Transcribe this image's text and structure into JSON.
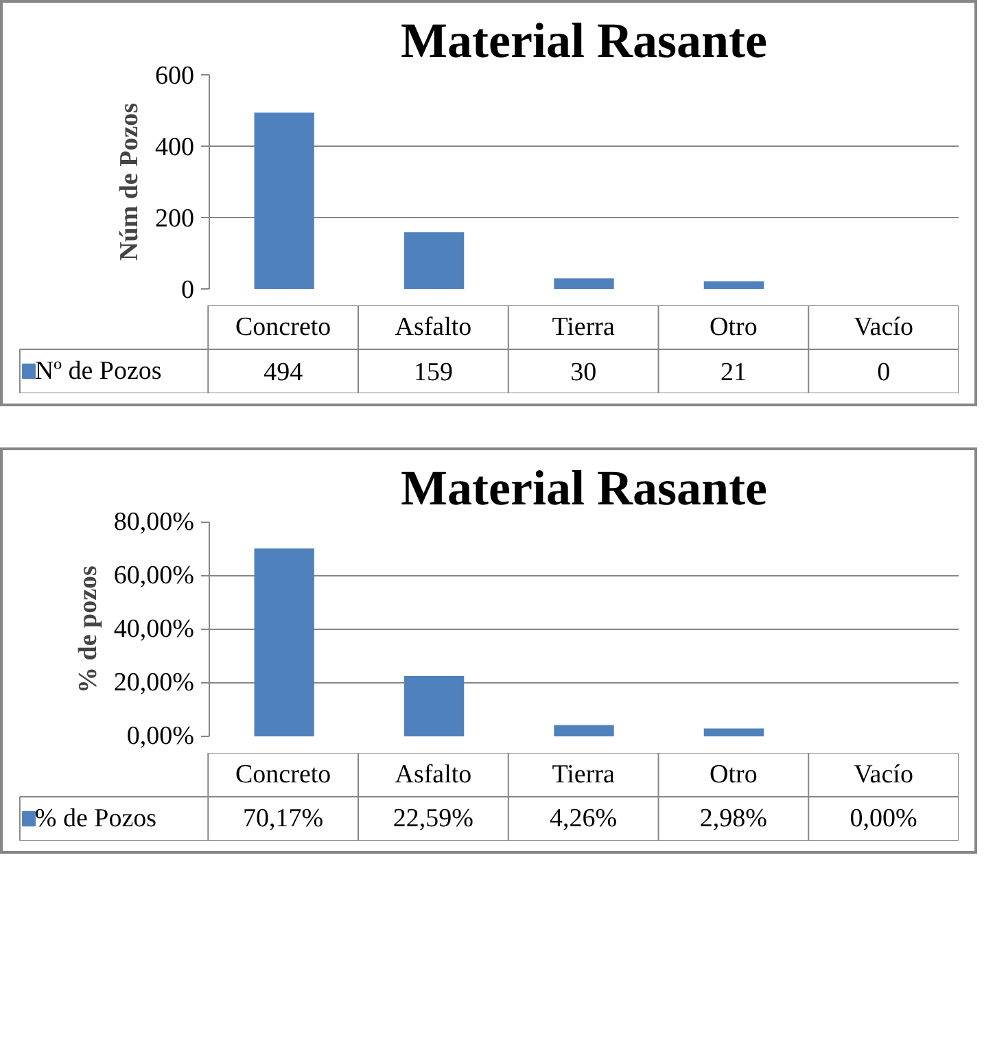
{
  "chart_data": [
    {
      "type": "bar",
      "title": "Material Rasante",
      "ylabel": "Núm de Pozos",
      "categories": [
        "Concreto",
        "Asfalto",
        "Tierra",
        "Otro",
        "Vacío"
      ],
      "series": [
        {
          "name": "Nº de Pozos",
          "color": "#4f81bd",
          "values": [
            494,
            159,
            30,
            21,
            0
          ]
        }
      ],
      "ylim": [
        0,
        600
      ],
      "yticks": [
        0,
        200,
        400,
        600
      ],
      "grid": "y",
      "legend": "bottom",
      "data_labels": true
    },
    {
      "type": "bar",
      "title": "Material Rasante",
      "ylabel": "% de pozos",
      "categories": [
        "Concreto",
        "Asfalto",
        "Tierra",
        "Otro",
        "Vacío"
      ],
      "series": [
        {
          "name": "% de Pozos",
          "color": "#4f81bd",
          "values": [
            70.17,
            22.59,
            4.26,
            2.98,
            0.0
          ],
          "value_labels": [
            "70,17%",
            "22,59%",
            "4,26%",
            "2,98%",
            "0,00%"
          ]
        }
      ],
      "ylim": [
        0,
        80
      ],
      "yticks": [
        {
          "value": 0,
          "label": "0,00%"
        },
        {
          "value": 20,
          "label": "20,00%"
        },
        {
          "value": 40,
          "label": "40,00%"
        },
        {
          "value": 60,
          "label": "60,00%"
        },
        {
          "value": 80,
          "label": "80,00%"
        }
      ],
      "grid": "y",
      "legend": "bottom"
    }
  ]
}
